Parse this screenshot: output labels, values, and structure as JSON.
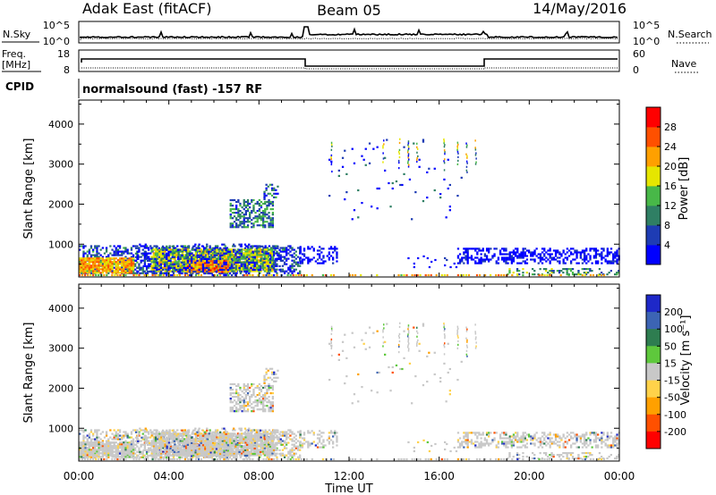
{
  "header": {
    "station": "Adak East (fitACF)",
    "beam": "Beam 05",
    "date": "14/May/2016"
  },
  "panels": {
    "nsky": {
      "left_label": "N.Sky",
      "left_ticks": [
        "10^5",
        "10^0"
      ],
      "right_ticks": [
        "10^5",
        "10^0"
      ],
      "right_label": "N.Search"
    },
    "freq": {
      "left_label_1": "Freq.",
      "left_label_2": "[MHz]",
      "left_ticks": [
        "18",
        "8"
      ],
      "right_ticks": [
        "60",
        "0"
      ],
      "right_label": "Nave"
    },
    "cpid": {
      "label": "CPID",
      "text": "normalsound (fast) -157 RF"
    }
  },
  "chart_data": [
    {
      "type": "heatmap",
      "title": "",
      "xlabel": "Time UT",
      "ylabel": "Slant Range [km]",
      "xlim": [
        "00:00",
        "24:00"
      ],
      "ylim": [
        180,
        4600
      ],
      "x_ticks": [
        "00:00",
        "04:00",
        "08:00",
        "12:00",
        "16:00",
        "20:00",
        "00:00"
      ],
      "y_ticks": [
        "1000",
        "2000",
        "3000",
        "4000"
      ],
      "colorbar": {
        "label": "Power [dB]",
        "tick_labels": [
          "4",
          "8",
          "12",
          "16",
          "20",
          "24",
          "28"
        ],
        "colors": [
          "#0000ff",
          "#1e3cb4",
          "#2f7f64",
          "#48b848",
          "#e6e600",
          "#ffa000",
          "#ff5000",
          "#ff0000"
        ]
      }
    },
    {
      "type": "heatmap",
      "title": "",
      "xlabel": "Time UT",
      "ylabel": "Slant Range [km]",
      "xlim": [
        "00:00",
        "24:00"
      ],
      "ylim": [
        180,
        4600
      ],
      "x_ticks": [
        "00:00",
        "04:00",
        "08:00",
        "12:00",
        "16:00",
        "20:00",
        "00:00"
      ],
      "y_ticks": [
        "1000",
        "2000",
        "3000",
        "4000"
      ],
      "colorbar": {
        "label": "Velocity [m s⁻¹]",
        "tick_labels": [
          "200",
          "100",
          "50",
          "15",
          "-15",
          "-50",
          "-100",
          "-200"
        ],
        "colors": [
          "#1e28c8",
          "#3c64b4",
          "#2e7d50",
          "#5ec83c",
          "#c8c8c8",
          "#ffd24a",
          "#ffa000",
          "#ff5000",
          "#ff0000"
        ]
      }
    }
  ]
}
